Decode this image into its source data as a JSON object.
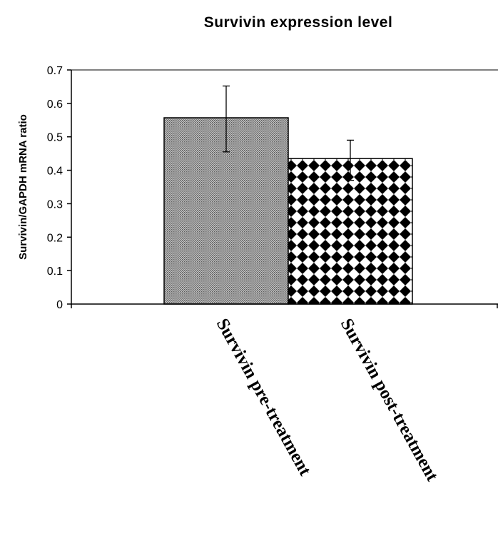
{
  "chart_data": {
    "type": "bar",
    "title": "Survivin expression level",
    "xlabel": "",
    "ylabel": "Survivin/GAPDH mRNA ratio",
    "ylim": [
      0,
      0.7
    ],
    "y_ticks": [
      "0",
      "0.1",
      "0.2",
      "0.3",
      "0.4",
      "0.5",
      "0.6",
      "0.7"
    ],
    "categories": [
      "Survivin pre-treatment",
      "Survivin post-treatment"
    ],
    "values": [
      0.557,
      0.435
    ],
    "error_bars": [
      {
        "low": 0.455,
        "high": 0.652
      },
      {
        "low": 0.37,
        "high": 0.49
      }
    ],
    "bar_patterns": [
      "fine-dot-gray",
      "checker-diamond"
    ],
    "colors": {
      "bar_fill_1": "#9a9a9a",
      "bar_fill_2": "#000000",
      "axis": "#000000",
      "background": "#ffffff"
    },
    "grid": false,
    "legend": "none"
  }
}
